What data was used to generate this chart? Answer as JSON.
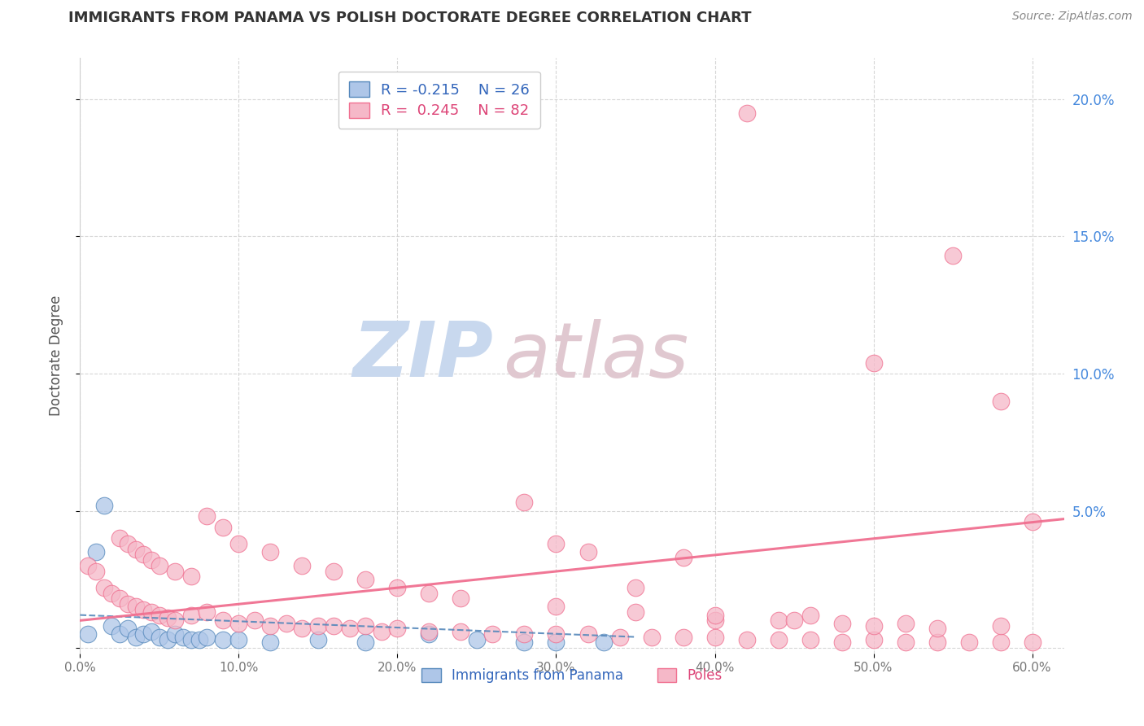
{
  "title": "IMMIGRANTS FROM PANAMA VS POLISH DOCTORATE DEGREE CORRELATION CHART",
  "source": "Source: ZipAtlas.com",
  "ylabel": "Doctorate Degree",
  "legend_label1": "Immigrants from Panama",
  "legend_label2": "Poles",
  "r1": -0.215,
  "n1": 26,
  "r2": 0.245,
  "n2": 82,
  "color1": "#aec6e8",
  "color2": "#f5b8c8",
  "trendline_color1": "#5588bb",
  "trendline_color2": "#f07090",
  "watermark_zip": "ZIP",
  "watermark_atlas": "atlas",
  "watermark_color_zip": "#c8d8ee",
  "watermark_color_atlas": "#e0c8d0",
  "xlim": [
    0.0,
    0.62
  ],
  "ylim": [
    -0.002,
    0.215
  ],
  "xticks": [
    0.0,
    0.1,
    0.2,
    0.3,
    0.4,
    0.5,
    0.6
  ],
  "xtick_labels": [
    "0.0%",
    "10.0%",
    "20.0%",
    "30.0%",
    "40.0%",
    "50.0%",
    "60.0%"
  ],
  "yticks": [
    0.0,
    0.05,
    0.1,
    0.15,
    0.2
  ],
  "ytick_labels": [
    "",
    "5.0%",
    "10.0%",
    "15.0%",
    "20.0%"
  ],
  "panama_x": [
    0.005,
    0.01,
    0.015,
    0.02,
    0.025,
    0.03,
    0.035,
    0.04,
    0.045,
    0.05,
    0.055,
    0.06,
    0.065,
    0.07,
    0.075,
    0.08,
    0.09,
    0.1,
    0.12,
    0.15,
    0.18,
    0.22,
    0.25,
    0.28,
    0.3,
    0.33
  ],
  "panama_y": [
    0.005,
    0.035,
    0.052,
    0.008,
    0.005,
    0.007,
    0.004,
    0.005,
    0.006,
    0.004,
    0.003,
    0.005,
    0.004,
    0.003,
    0.003,
    0.004,
    0.003,
    0.003,
    0.002,
    0.003,
    0.002,
    0.005,
    0.003,
    0.002,
    0.002,
    0.002
  ],
  "poles_x": [
    0.005,
    0.01,
    0.015,
    0.02,
    0.025,
    0.03,
    0.035,
    0.04,
    0.045,
    0.05,
    0.055,
    0.06,
    0.07,
    0.08,
    0.09,
    0.1,
    0.11,
    0.12,
    0.13,
    0.14,
    0.15,
    0.16,
    0.17,
    0.18,
    0.19,
    0.2,
    0.22,
    0.24,
    0.26,
    0.28,
    0.3,
    0.32,
    0.34,
    0.36,
    0.38,
    0.4,
    0.42,
    0.44,
    0.46,
    0.48,
    0.5,
    0.52,
    0.54,
    0.56,
    0.58,
    0.6,
    0.025,
    0.03,
    0.035,
    0.04,
    0.045,
    0.05,
    0.06,
    0.07,
    0.08,
    0.09,
    0.1,
    0.12,
    0.14,
    0.16,
    0.18,
    0.2,
    0.22,
    0.24,
    0.28,
    0.3,
    0.32,
    0.35,
    0.38,
    0.4,
    0.44,
    0.46,
    0.5,
    0.54,
    0.58,
    0.6,
    0.3,
    0.35,
    0.4,
    0.45,
    0.48,
    0.52
  ],
  "poles_y": [
    0.03,
    0.028,
    0.022,
    0.02,
    0.018,
    0.016,
    0.015,
    0.014,
    0.013,
    0.012,
    0.011,
    0.01,
    0.012,
    0.013,
    0.01,
    0.009,
    0.01,
    0.008,
    0.009,
    0.007,
    0.008,
    0.008,
    0.007,
    0.008,
    0.006,
    0.007,
    0.006,
    0.006,
    0.005,
    0.005,
    0.005,
    0.005,
    0.004,
    0.004,
    0.004,
    0.004,
    0.003,
    0.003,
    0.003,
    0.002,
    0.003,
    0.002,
    0.002,
    0.002,
    0.002,
    0.002,
    0.04,
    0.038,
    0.036,
    0.034,
    0.032,
    0.03,
    0.028,
    0.026,
    0.048,
    0.044,
    0.038,
    0.035,
    0.03,
    0.028,
    0.025,
    0.022,
    0.02,
    0.018,
    0.053,
    0.038,
    0.035,
    0.022,
    0.033,
    0.01,
    0.01,
    0.012,
    0.008,
    0.007,
    0.008,
    0.046,
    0.015,
    0.013,
    0.012,
    0.01,
    0.009,
    0.009
  ],
  "outlier_poles": [
    [
      0.42,
      0.195
    ],
    [
      0.55,
      0.143
    ],
    [
      0.5,
      0.104
    ],
    [
      0.58,
      0.09
    ]
  ],
  "panama_trend_x": [
    0.0,
    0.35
  ],
  "panama_trend_y": [
    0.012,
    0.004
  ],
  "poles_trend_x": [
    0.0,
    0.62
  ],
  "poles_trend_y": [
    0.01,
    0.047
  ]
}
